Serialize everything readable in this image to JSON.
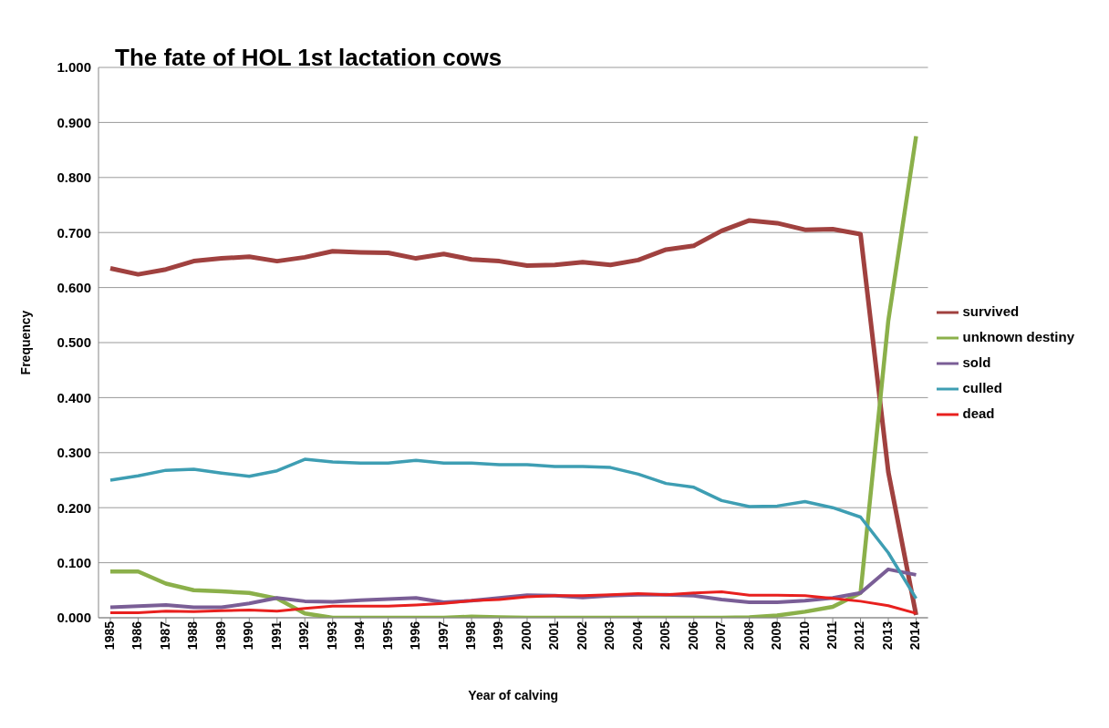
{
  "chart_data": {
    "type": "line",
    "title": "The fate of HOL 1st lactation cows",
    "xlabel": "Year of calving",
    "ylabel": "Frequency",
    "categories": [
      "1985",
      "1986",
      "1987",
      "1988",
      "1989",
      "1990",
      "1991",
      "1992",
      "1993",
      "1994",
      "1995",
      "1996",
      "1997",
      "1998",
      "1999",
      "2000",
      "2001",
      "2002",
      "2003",
      "2004",
      "2005",
      "2006",
      "2007",
      "2008",
      "2009",
      "2010",
      "2011",
      "2012",
      "2013",
      "2014"
    ],
    "series": [
      {
        "name": "survived",
        "color": "#a0413f",
        "values": [
          0.635,
          0.624,
          0.633,
          0.648,
          0.653,
          0.656,
          0.648,
          0.655,
          0.666,
          0.664,
          0.663,
          0.653,
          0.661,
          0.651,
          0.648,
          0.64,
          0.641,
          0.646,
          0.641,
          0.65,
          0.669,
          0.676,
          0.703,
          0.722,
          0.717,
          0.705,
          0.706,
          0.697,
          0.265,
          0.005
        ]
      },
      {
        "name": "unknown destiny",
        "color": "#8bb04a",
        "values": [
          0.084,
          0.084,
          0.062,
          0.05,
          0.048,
          0.045,
          0.035,
          0.008,
          0,
          0,
          0,
          0,
          0,
          0.002,
          0.001,
          0,
          0,
          0,
          0,
          0,
          0,
          0,
          0,
          0.001,
          0.004,
          0.011,
          0.02,
          0.045,
          0.54,
          0.875
        ]
      },
      {
        "name": "sold",
        "color": "#7a5e96",
        "values": [
          0.019,
          0.021,
          0.023,
          0.019,
          0.019,
          0.026,
          0.036,
          0.03,
          0.029,
          0.032,
          0.034,
          0.036,
          0.028,
          0.031,
          0.036,
          0.041,
          0.04,
          0.037,
          0.04,
          0.042,
          0.042,
          0.04,
          0.033,
          0.028,
          0.028,
          0.031,
          0.036,
          0.045,
          0.088,
          0.078
        ]
      },
      {
        "name": "culled",
        "color": "#3e9eb3",
        "values": [
          0.25,
          0.258,
          0.268,
          0.27,
          0.263,
          0.257,
          0.267,
          0.288,
          0.283,
          0.281,
          0.281,
          0.286,
          0.281,
          0.281,
          0.278,
          0.278,
          0.275,
          0.275,
          0.273,
          0.261,
          0.244,
          0.237,
          0.213,
          0.202,
          0.203,
          0.211,
          0.2,
          0.183,
          0.118,
          0.035
        ]
      },
      {
        "name": "dead",
        "color": "#e8201e",
        "values": [
          0.009,
          0.009,
          0.012,
          0.011,
          0.013,
          0.014,
          0.012,
          0.017,
          0.021,
          0.021,
          0.021,
          0.023,
          0.026,
          0.031,
          0.033,
          0.038,
          0.04,
          0.04,
          0.042,
          0.044,
          0.042,
          0.045,
          0.047,
          0.041,
          0.041,
          0.04,
          0.035,
          0.03,
          0.022,
          0.008
        ]
      }
    ],
    "ylim": [
      0,
      1
    ],
    "yticks": [
      {
        "value": 0,
        "label": "0.000"
      },
      {
        "value": 0.1,
        "label": "0.100"
      },
      {
        "value": 0.2,
        "label": "0.200"
      },
      {
        "value": 0.3,
        "label": "0.300"
      },
      {
        "value": 0.4,
        "label": "0.400"
      },
      {
        "value": 0.5,
        "label": "0.500"
      },
      {
        "value": 0.6,
        "label": "0.600"
      },
      {
        "value": 0.7,
        "label": "0.700"
      },
      {
        "value": 0.8,
        "label": "0.800"
      },
      {
        "value": 0.9,
        "label": "0.900"
      },
      {
        "value": 1,
        "label": "1.000"
      }
    ],
    "grid": "y",
    "legend": "right",
    "marker": "none",
    "line_style": "solid"
  }
}
